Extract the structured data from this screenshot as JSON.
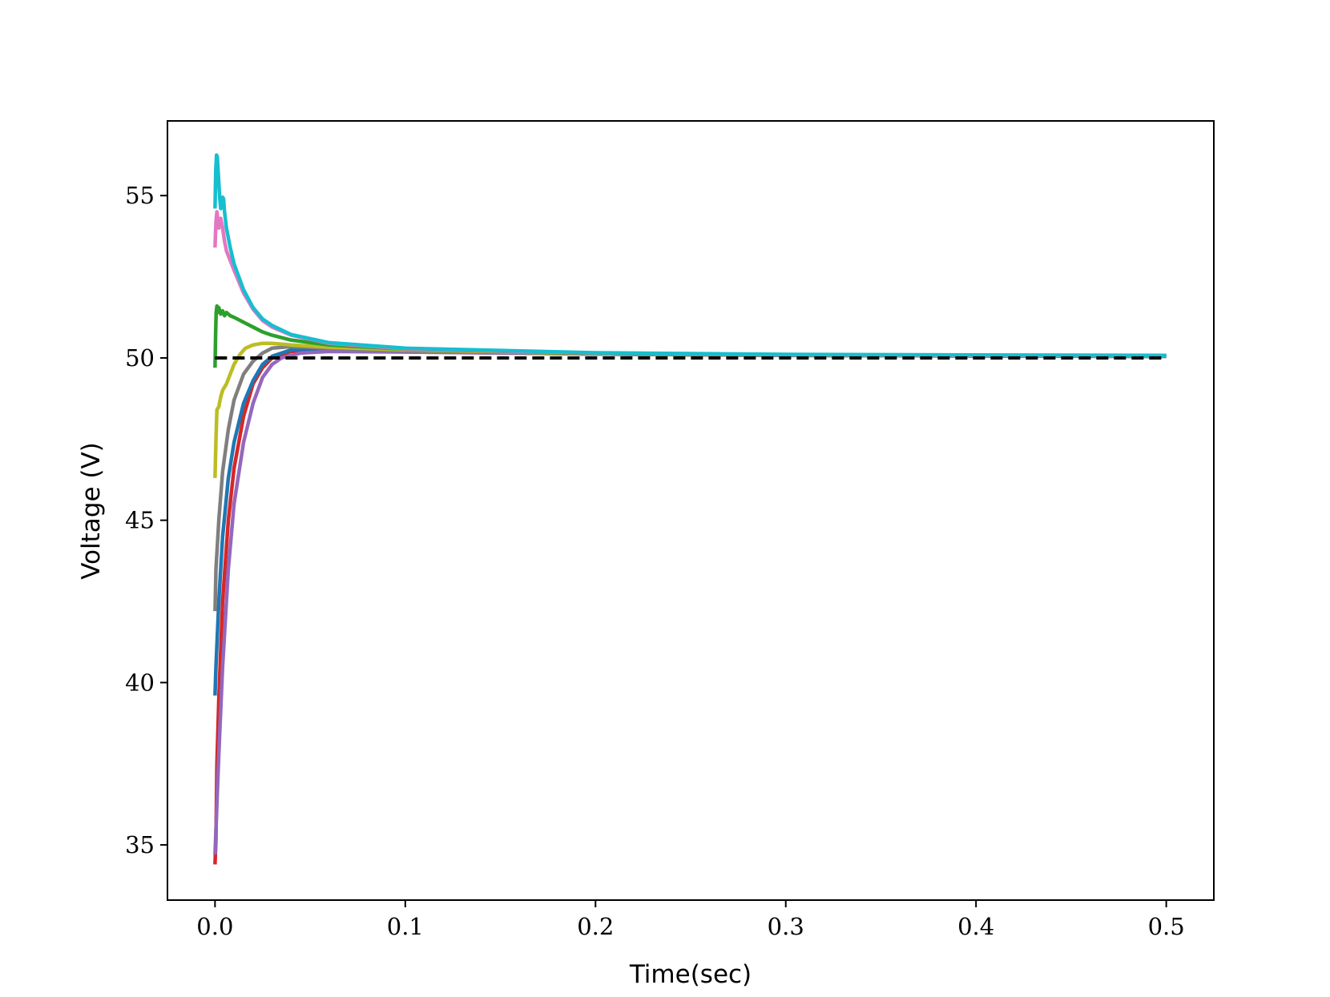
{
  "chart_data": {
    "type": "line",
    "xlabel": "Time(sec)",
    "ylabel": "Voltage (V)",
    "xlim": [
      -0.025,
      0.525
    ],
    "ylim": [
      33.3,
      57.3
    ],
    "xticks": [
      0.0,
      0.1,
      0.2,
      0.3,
      0.4,
      0.5
    ],
    "xtick_labels": [
      "0.0",
      "0.1",
      "0.2",
      "0.3",
      "0.4",
      "0.5"
    ],
    "yticks": [
      35,
      40,
      45,
      50,
      55
    ],
    "ytick_labels": [
      "35",
      "40",
      "45",
      "50",
      "55"
    ],
    "grid": false,
    "legend": "none",
    "reference": {
      "style": "dashed",
      "color": "#000000",
      "points": [
        [
          0.0,
          50.0
        ],
        [
          0.5,
          50.0
        ]
      ]
    },
    "series": [
      {
        "color": "#d62728",
        "points": [
          [
            0.0,
            34.4
          ],
          [
            0.0005,
            35.2
          ],
          [
            0.001,
            37.5
          ],
          [
            0.002,
            39.5
          ],
          [
            0.004,
            42.5
          ],
          [
            0.007,
            45.0
          ],
          [
            0.01,
            46.6
          ],
          [
            0.015,
            48.2
          ],
          [
            0.02,
            49.2
          ],
          [
            0.025,
            49.7
          ],
          [
            0.03,
            50.0
          ],
          [
            0.04,
            50.2
          ],
          [
            0.06,
            50.25
          ],
          [
            0.1,
            50.2
          ],
          [
            0.2,
            50.12
          ],
          [
            0.3,
            50.08
          ],
          [
            0.4,
            50.06
          ],
          [
            0.5,
            50.05
          ]
        ]
      },
      {
        "color": "#1f77b4",
        "points": [
          [
            0.0,
            39.6
          ],
          [
            0.0005,
            40.5
          ],
          [
            0.002,
            42.5
          ],
          [
            0.004,
            44.5
          ],
          [
            0.007,
            46.3
          ],
          [
            0.01,
            47.4
          ],
          [
            0.015,
            48.6
          ],
          [
            0.02,
            49.3
          ],
          [
            0.025,
            49.8
          ],
          [
            0.03,
            50.05
          ],
          [
            0.04,
            50.25
          ],
          [
            0.06,
            50.3
          ],
          [
            0.1,
            50.22
          ],
          [
            0.2,
            50.12
          ],
          [
            0.3,
            50.08
          ],
          [
            0.4,
            50.06
          ],
          [
            0.5,
            50.05
          ]
        ]
      },
      {
        "color": "#9467bd",
        "points": [
          [
            0.0,
            34.7
          ],
          [
            0.0005,
            35.5
          ],
          [
            0.002,
            37.8
          ],
          [
            0.004,
            40.5
          ],
          [
            0.007,
            43.5
          ],
          [
            0.01,
            45.5
          ],
          [
            0.015,
            47.4
          ],
          [
            0.02,
            48.6
          ],
          [
            0.025,
            49.4
          ],
          [
            0.03,
            49.8
          ],
          [
            0.035,
            50.0
          ],
          [
            0.045,
            50.15
          ],
          [
            0.06,
            50.2
          ],
          [
            0.1,
            50.18
          ],
          [
            0.2,
            50.12
          ],
          [
            0.3,
            50.08
          ],
          [
            0.4,
            50.06
          ],
          [
            0.5,
            50.05
          ]
        ]
      },
      {
        "color": "#7f7f7f",
        "points": [
          [
            0.0,
            42.2
          ],
          [
            0.0005,
            43.5
          ],
          [
            0.002,
            45.0
          ],
          [
            0.004,
            46.5
          ],
          [
            0.007,
            47.8
          ],
          [
            0.01,
            48.7
          ],
          [
            0.015,
            49.5
          ],
          [
            0.02,
            49.9
          ],
          [
            0.025,
            50.15
          ],
          [
            0.03,
            50.3
          ],
          [
            0.04,
            50.35
          ],
          [
            0.06,
            50.3
          ],
          [
            0.1,
            50.22
          ],
          [
            0.2,
            50.12
          ],
          [
            0.3,
            50.08
          ],
          [
            0.4,
            50.06
          ],
          [
            0.5,
            50.05
          ]
        ]
      },
      {
        "color": "#bcbd22",
        "points": [
          [
            0.0,
            46.3
          ],
          [
            0.0005,
            47.5
          ],
          [
            0.001,
            48.4
          ],
          [
            0.002,
            48.5
          ],
          [
            0.003,
            48.8
          ],
          [
            0.004,
            49.0
          ],
          [
            0.005,
            49.1
          ],
          [
            0.006,
            49.2
          ],
          [
            0.008,
            49.5
          ],
          [
            0.01,
            49.8
          ],
          [
            0.013,
            50.1
          ],
          [
            0.016,
            50.3
          ],
          [
            0.02,
            50.4
          ],
          [
            0.025,
            50.45
          ],
          [
            0.03,
            50.45
          ],
          [
            0.04,
            50.4
          ],
          [
            0.06,
            50.33
          ],
          [
            0.1,
            50.25
          ],
          [
            0.2,
            50.13
          ],
          [
            0.3,
            50.09
          ],
          [
            0.4,
            50.07
          ],
          [
            0.5,
            50.06
          ]
        ]
      },
      {
        "color": "#2ca02c",
        "points": [
          [
            0.0,
            49.7
          ],
          [
            0.0003,
            50.7
          ],
          [
            0.0006,
            51.4
          ],
          [
            0.001,
            51.6
          ],
          [
            0.0015,
            51.4
          ],
          [
            0.002,
            51.55
          ],
          [
            0.003,
            51.35
          ],
          [
            0.004,
            51.45
          ],
          [
            0.005,
            51.3
          ],
          [
            0.006,
            51.4
          ],
          [
            0.008,
            51.3
          ],
          [
            0.01,
            51.25
          ],
          [
            0.015,
            51.1
          ],
          [
            0.02,
            50.95
          ],
          [
            0.025,
            50.8
          ],
          [
            0.03,
            50.7
          ],
          [
            0.04,
            50.55
          ],
          [
            0.06,
            50.4
          ],
          [
            0.1,
            50.27
          ],
          [
            0.2,
            50.14
          ],
          [
            0.3,
            50.09
          ],
          [
            0.4,
            50.07
          ],
          [
            0.5,
            50.06
          ]
        ]
      },
      {
        "color": "#e377c2",
        "points": [
          [
            0.0,
            53.4
          ],
          [
            0.0005,
            54.2
          ],
          [
            0.001,
            54.5
          ],
          [
            0.002,
            54.0
          ],
          [
            0.003,
            54.3
          ],
          [
            0.004,
            54.0
          ],
          [
            0.005,
            53.6
          ],
          [
            0.006,
            53.3
          ],
          [
            0.008,
            53.0
          ],
          [
            0.01,
            52.7
          ],
          [
            0.015,
            52.0
          ],
          [
            0.02,
            51.5
          ],
          [
            0.025,
            51.15
          ],
          [
            0.03,
            50.95
          ],
          [
            0.04,
            50.7
          ],
          [
            0.06,
            50.45
          ],
          [
            0.1,
            50.28
          ],
          [
            0.2,
            50.15
          ],
          [
            0.3,
            50.1
          ],
          [
            0.4,
            50.08
          ],
          [
            0.5,
            50.07
          ]
        ]
      },
      {
        "color": "#17becf",
        "points": [
          [
            0.0,
            54.6
          ],
          [
            0.0004,
            55.8
          ],
          [
            0.0008,
            56.25
          ],
          [
            0.0012,
            56.2
          ],
          [
            0.0016,
            55.8
          ],
          [
            0.002,
            55.4
          ],
          [
            0.0025,
            54.9
          ],
          [
            0.003,
            54.6
          ],
          [
            0.0035,
            54.7
          ],
          [
            0.004,
            54.95
          ],
          [
            0.0045,
            54.9
          ],
          [
            0.005,
            54.5
          ],
          [
            0.006,
            54.0
          ],
          [
            0.008,
            53.4
          ],
          [
            0.01,
            52.9
          ],
          [
            0.015,
            52.1
          ],
          [
            0.02,
            51.55
          ],
          [
            0.025,
            51.2
          ],
          [
            0.03,
            51.0
          ],
          [
            0.04,
            50.72
          ],
          [
            0.06,
            50.47
          ],
          [
            0.1,
            50.3
          ],
          [
            0.2,
            50.16
          ],
          [
            0.3,
            50.11
          ],
          [
            0.4,
            50.09
          ],
          [
            0.5,
            50.08
          ]
        ]
      }
    ]
  }
}
